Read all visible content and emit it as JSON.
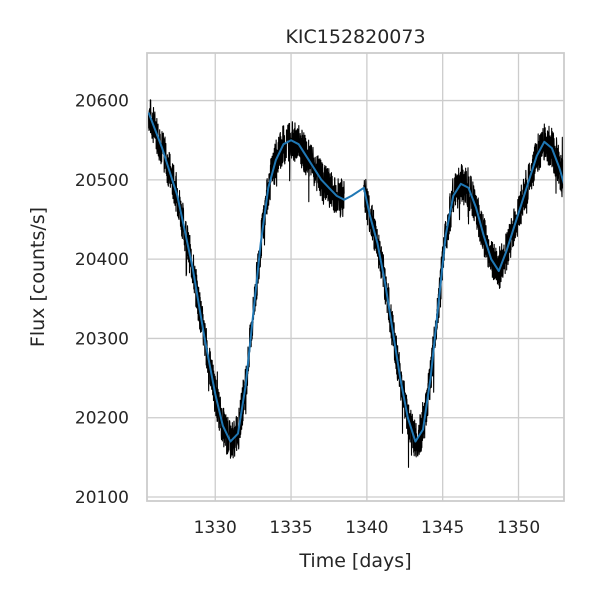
{
  "chart_data": {
    "type": "line",
    "title": "KIC152820073",
    "xlabel": "Time [days]",
    "ylabel": "Flux [counts/s]",
    "xlim": [
      1325.5,
      1353.0
    ],
    "ylim": [
      20095,
      20660
    ],
    "xticks": [
      1330,
      1335,
      1340,
      1345,
      1350
    ],
    "yticks": [
      20100,
      20200,
      20300,
      20400,
      20500,
      20600
    ],
    "grid": true,
    "series": [
      {
        "style": "noisy-raw",
        "color": "#000000",
        "noise_amplitude": 25,
        "segments": [
          {
            "x": [
              1325.6,
              1326.5,
              1327.5,
              1328.5,
              1329.3,
              1330.0,
              1330.5,
              1331.0,
              1331.5,
              1332.0,
              1332.5,
              1333.0,
              1333.5,
              1334.0,
              1334.5,
              1335.0,
              1335.5,
              1336.0,
              1336.5,
              1337.0,
              1337.5,
              1338.0,
              1338.5
            ],
            "y": [
              20585,
              20540,
              20480,
              20390,
              20300,
              20230,
              20190,
              20170,
              20180,
              20240,
              20330,
              20420,
              20490,
              20525,
              20545,
              20550,
              20545,
              20530,
              20515,
              20500,
              20490,
              20480,
              20475
            ]
          },
          {
            "x": [
              1339.8,
              1340.2,
              1340.7,
              1341.2,
              1341.7,
              1342.2,
              1342.7,
              1343.2,
              1343.7,
              1344.2,
              1344.7,
              1345.2,
              1345.7,
              1346.2,
              1346.7,
              1347.2,
              1347.7,
              1348.2,
              1348.7,
              1349.2,
              1349.7,
              1350.2,
              1350.7,
              1351.2,
              1351.7,
              1352.2,
              1352.7,
              1353.0
            ],
            "y": [
              20490,
              20455,
              20420,
              20370,
              20310,
              20250,
              20200,
              20170,
              20185,
              20250,
              20340,
              20430,
              20480,
              20495,
              20490,
              20465,
              20430,
              20400,
              20385,
              20410,
              20440,
              20470,
              20500,
              20530,
              20548,
              20540,
              20515,
              20495
            ]
          }
        ]
      },
      {
        "style": "smoothed",
        "color": "#1f77b4",
        "x": [
          1325.6,
          1326.5,
          1327.5,
          1328.5,
          1329.3,
          1330.0,
          1330.5,
          1331.0,
          1331.5,
          1332.0,
          1332.5,
          1333.0,
          1333.5,
          1334.0,
          1334.5,
          1335.0,
          1335.5,
          1336.0,
          1336.5,
          1337.0,
          1337.5,
          1338.0,
          1338.5,
          1339.0,
          1339.8,
          1340.2,
          1340.7,
          1341.2,
          1341.7,
          1342.2,
          1342.7,
          1343.2,
          1343.7,
          1344.2,
          1344.7,
          1345.2,
          1345.7,
          1346.2,
          1346.7,
          1347.2,
          1347.7,
          1348.2,
          1348.7,
          1349.2,
          1349.7,
          1350.2,
          1350.7,
          1351.2,
          1351.7,
          1352.2,
          1352.7,
          1353.0
        ],
        "y": [
          20585,
          20540,
          20480,
          20390,
          20300,
          20230,
          20190,
          20170,
          20180,
          20240,
          20330,
          20420,
          20490,
          20525,
          20545,
          20550,
          20545,
          20530,
          20515,
          20500,
          20490,
          20480,
          20475,
          20480,
          20490,
          20455,
          20420,
          20370,
          20310,
          20250,
          20200,
          20170,
          20185,
          20250,
          20340,
          20430,
          20480,
          20495,
          20490,
          20465,
          20430,
          20400,
          20385,
          20410,
          20440,
          20470,
          20500,
          20530,
          20548,
          20540,
          20515,
          20495
        ]
      }
    ]
  }
}
